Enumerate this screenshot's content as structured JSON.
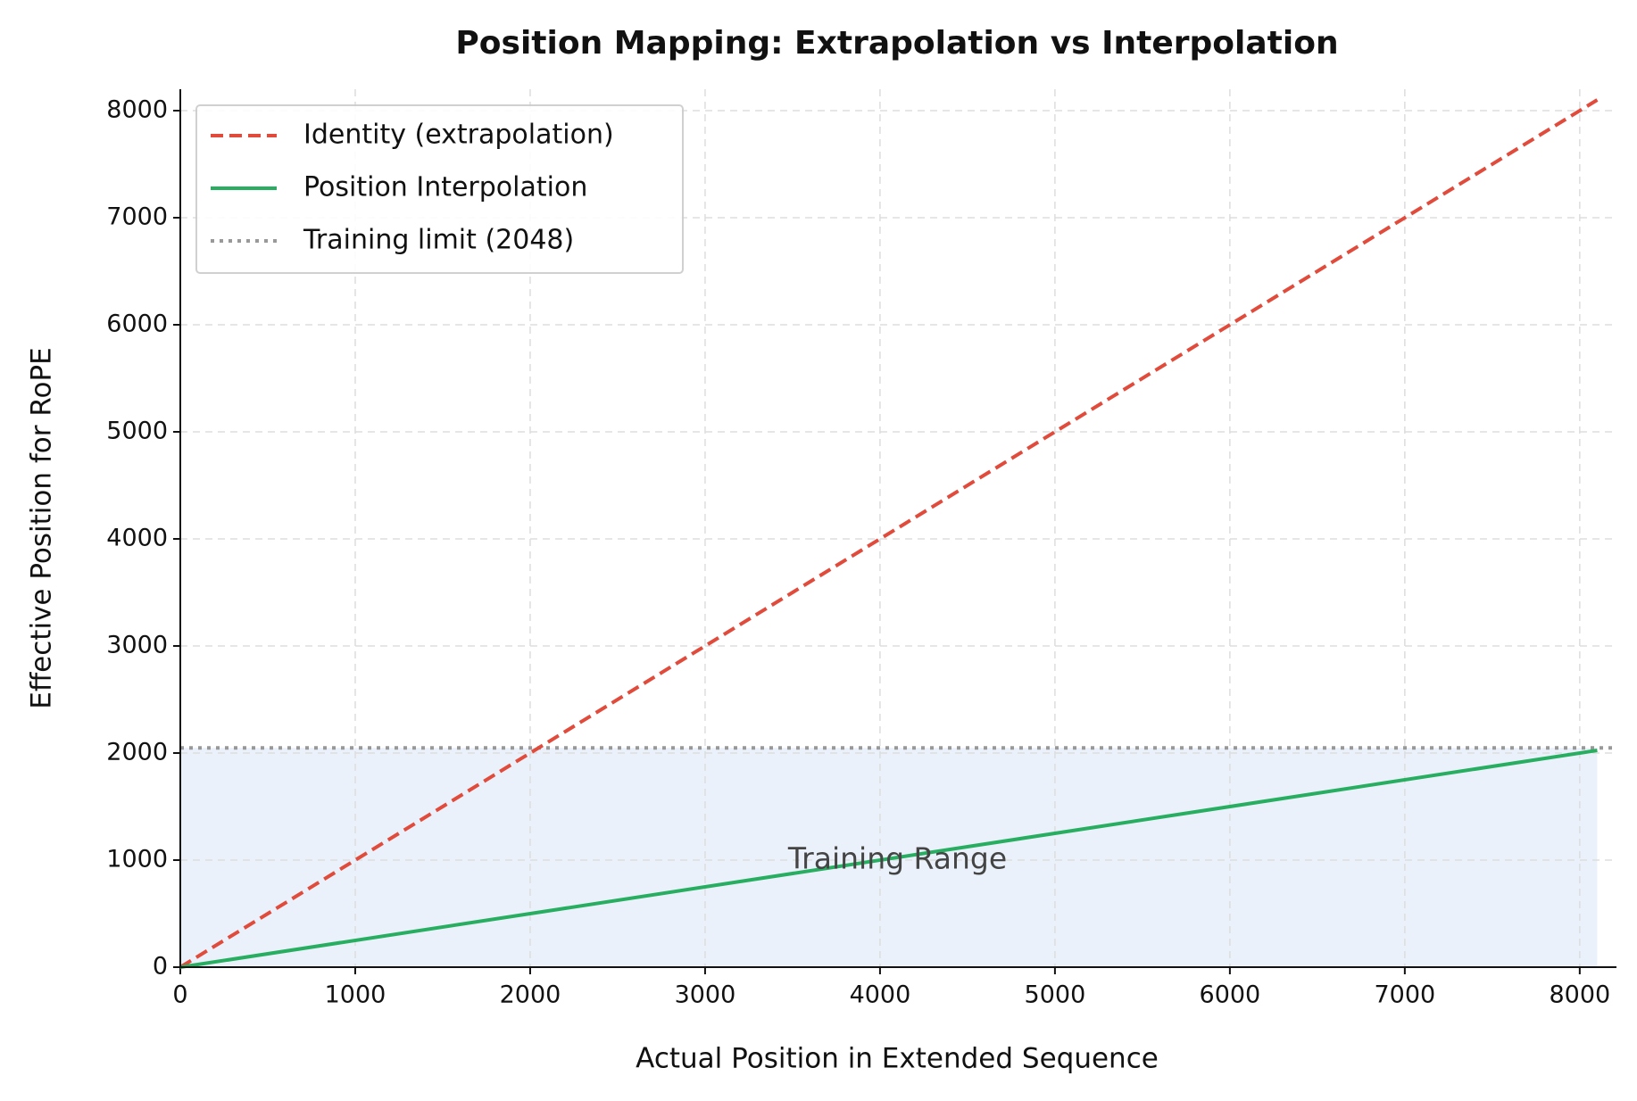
{
  "chart_data": {
    "type": "line",
    "title": "Position Mapping: Extrapolation vs Interpolation",
    "xlabel": "Actual Position in Extended Sequence",
    "ylabel": "Effective Position for RoPE",
    "xlim": [
      0,
      8210
    ],
    "ylim": [
      0,
      8200
    ],
    "xticks": [
      0,
      1000,
      2000,
      3000,
      4000,
      5000,
      6000,
      7000,
      8000
    ],
    "yticks": [
      0,
      1000,
      2000,
      3000,
      4000,
      5000,
      6000,
      7000,
      8000
    ],
    "grid": true,
    "legend": "upper left",
    "x": [
      0,
      8100
    ],
    "series": [
      {
        "name": "Identity (extrapolation)",
        "color": "#e04b3c",
        "style": "dashed",
        "values": [
          0,
          8100
        ]
      },
      {
        "name": "Position Interpolation",
        "color": "#27ae60",
        "style": "solid",
        "values": [
          0,
          2025
        ]
      }
    ],
    "hline": {
      "name": "Training limit (2048)",
      "color": "#999999",
      "style": "dotted",
      "value": 2048
    },
    "shade_color": "#dce8f7",
    "annotation": {
      "text": "Training Range",
      "x": 4100,
      "y": 1000
    }
  }
}
